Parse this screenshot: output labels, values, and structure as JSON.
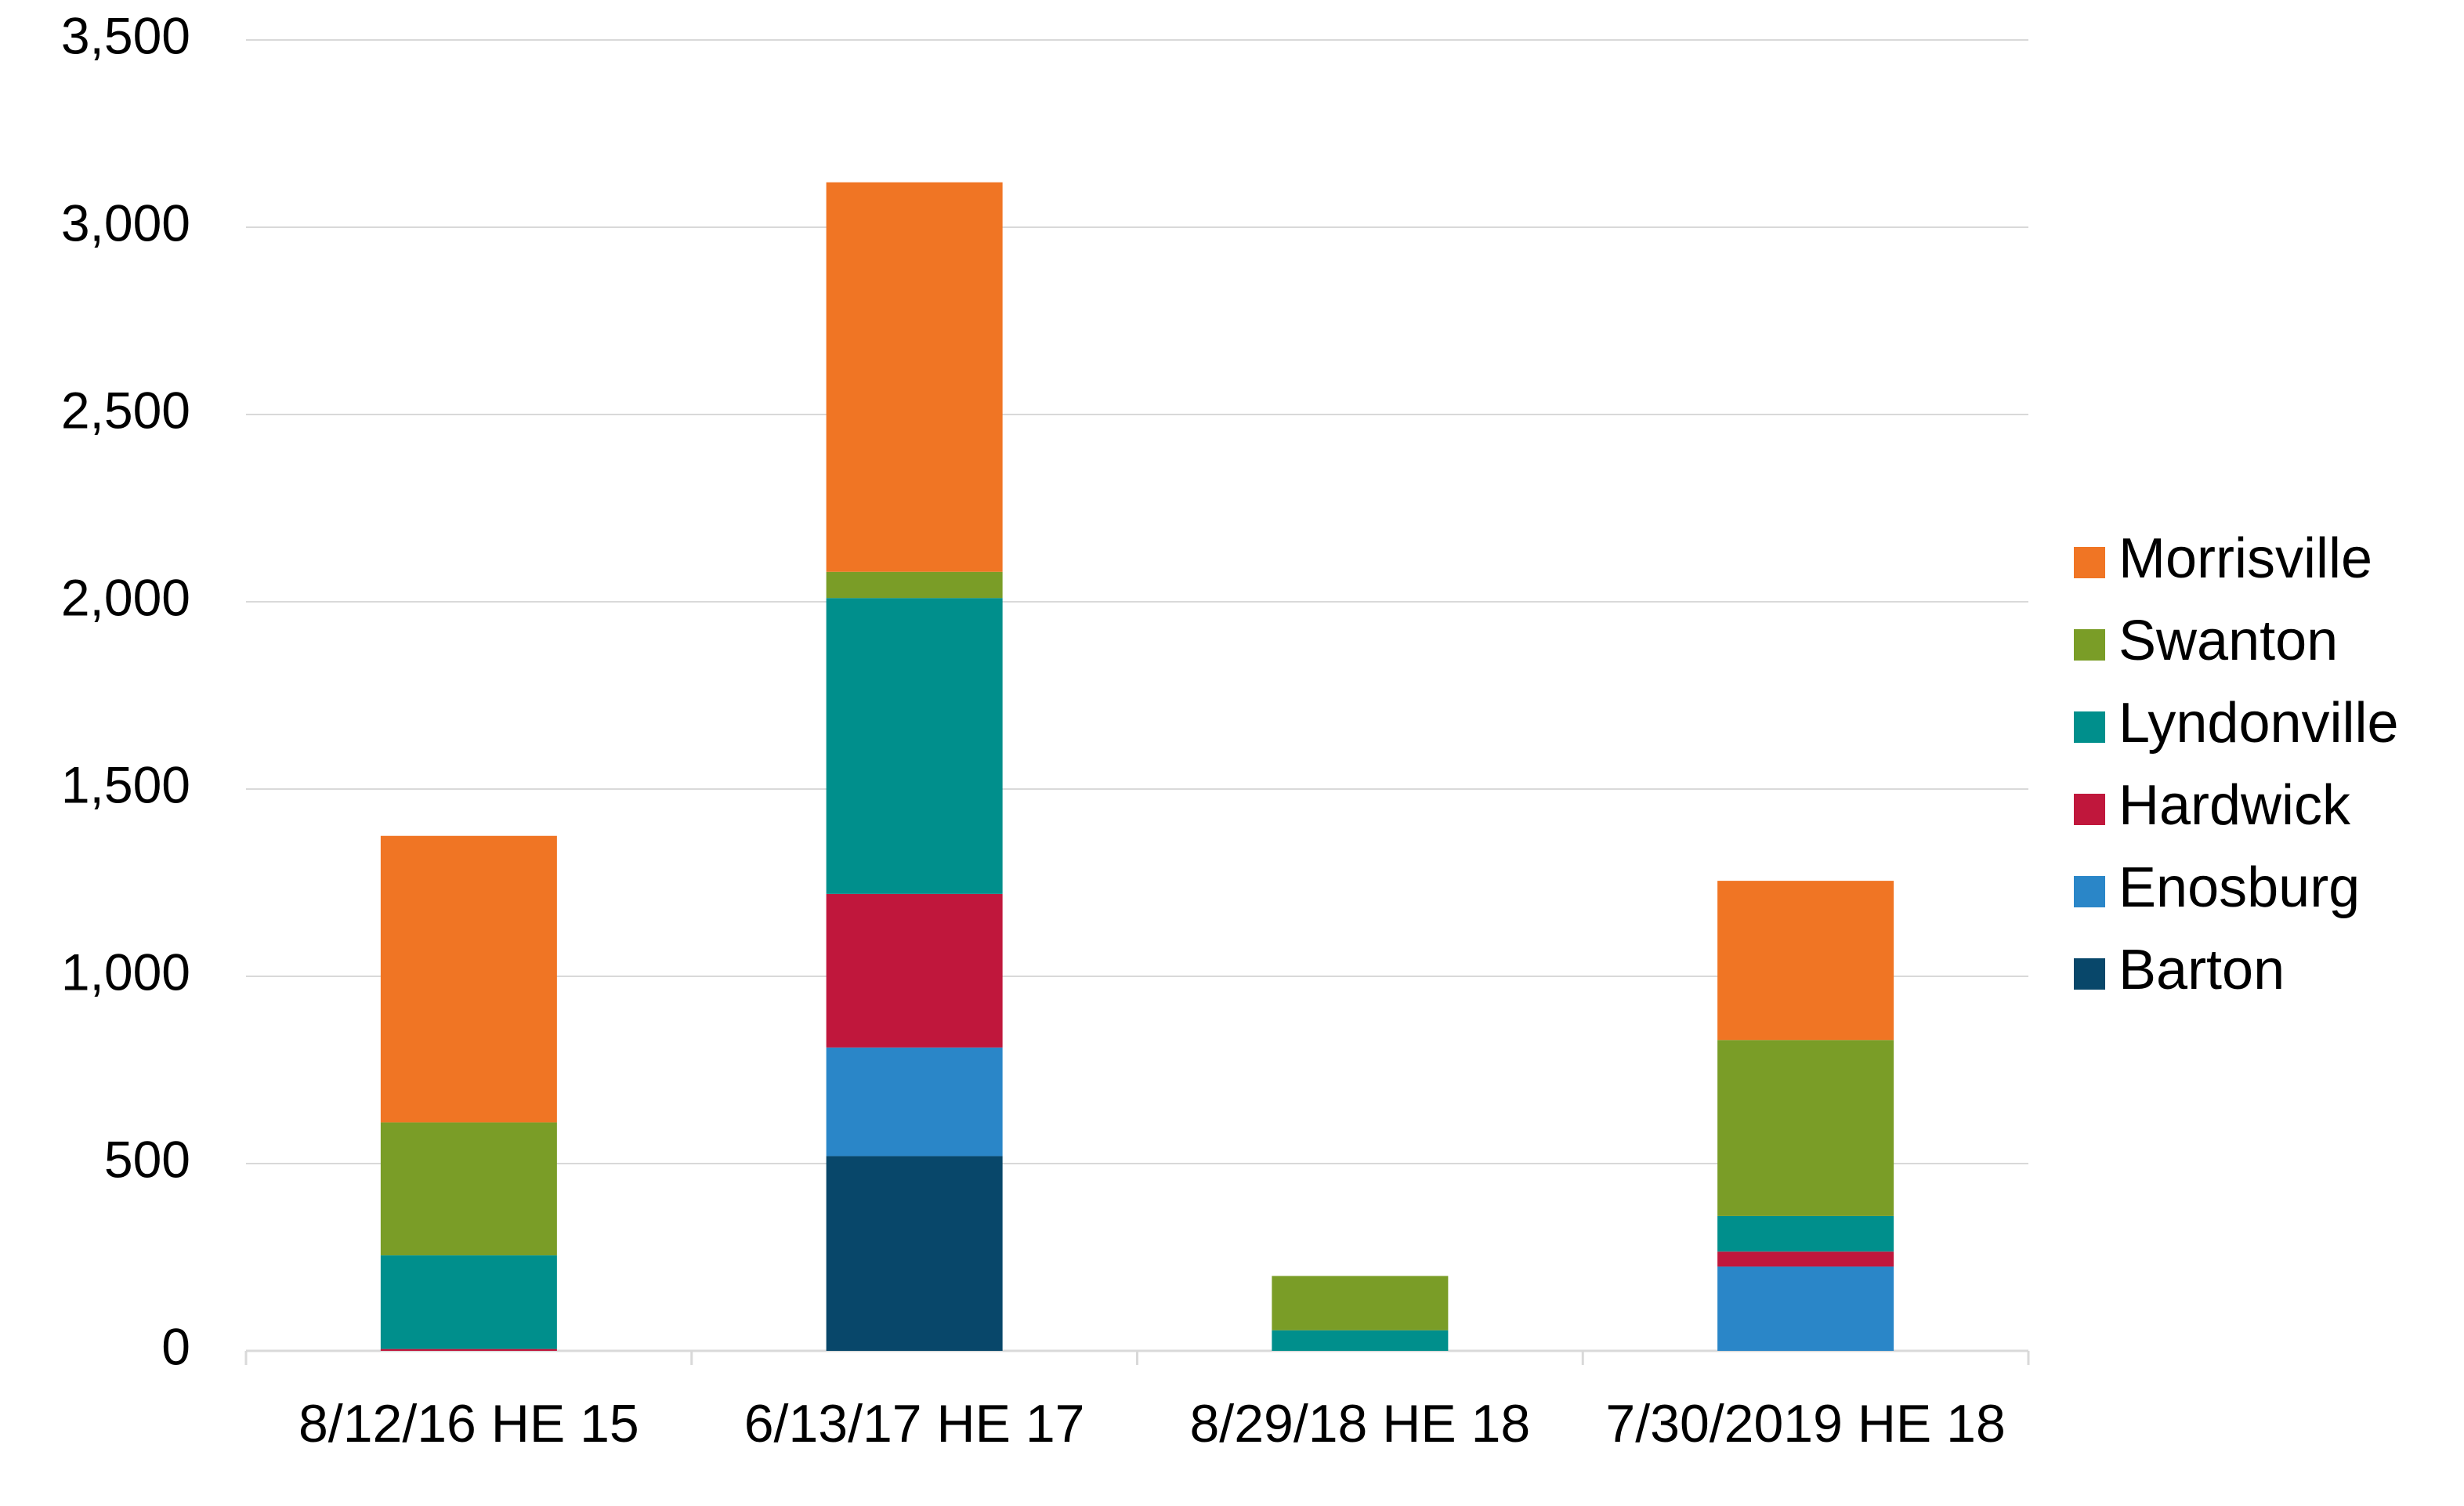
{
  "chart_data": {
    "type": "bar",
    "stacked": true,
    "categories": [
      "8/12/16 HE 15",
      "6/13/17 HE 17",
      "8/29/18 HE 18",
      "7/30/2019 HE 18"
    ],
    "series": [
      {
        "name": "Barton",
        "color": "#08476a",
        "values": [
          0,
          520,
          0,
          0
        ]
      },
      {
        "name": "Enosburg",
        "color": "#2a86c8",
        "values": [
          0,
          290,
          0,
          225
        ]
      },
      {
        "name": "Hardwick",
        "color": "#c0173c",
        "values": [
          5,
          410,
          0,
          40
        ]
      },
      {
        "name": "Lyndonville",
        "color": "#008f8c",
        "values": [
          250,
          790,
          55,
          95
        ]
      },
      {
        "name": "Swanton",
        "color": "#7a9d27",
        "values": [
          355,
          70,
          145,
          470
        ]
      },
      {
        "name": "Morrisville",
        "color": "#f07524",
        "values": [
          765,
          1040,
          0,
          425
        ]
      }
    ],
    "ylim": [
      0,
      3500
    ],
    "yticks": [
      0,
      500,
      {
        "value": 1000,
        "label": "1,000"
      },
      {
        "value": 1500,
        "label": "1,500"
      },
      {
        "value": 2000,
        "label": "2,000"
      },
      {
        "value": 2500,
        "label": "2,500"
      },
      {
        "value": 3000,
        "label": "3,000"
      },
      {
        "value": 3500,
        "label": "3,500"
      }
    ],
    "grid": true,
    "legend": "right"
  }
}
